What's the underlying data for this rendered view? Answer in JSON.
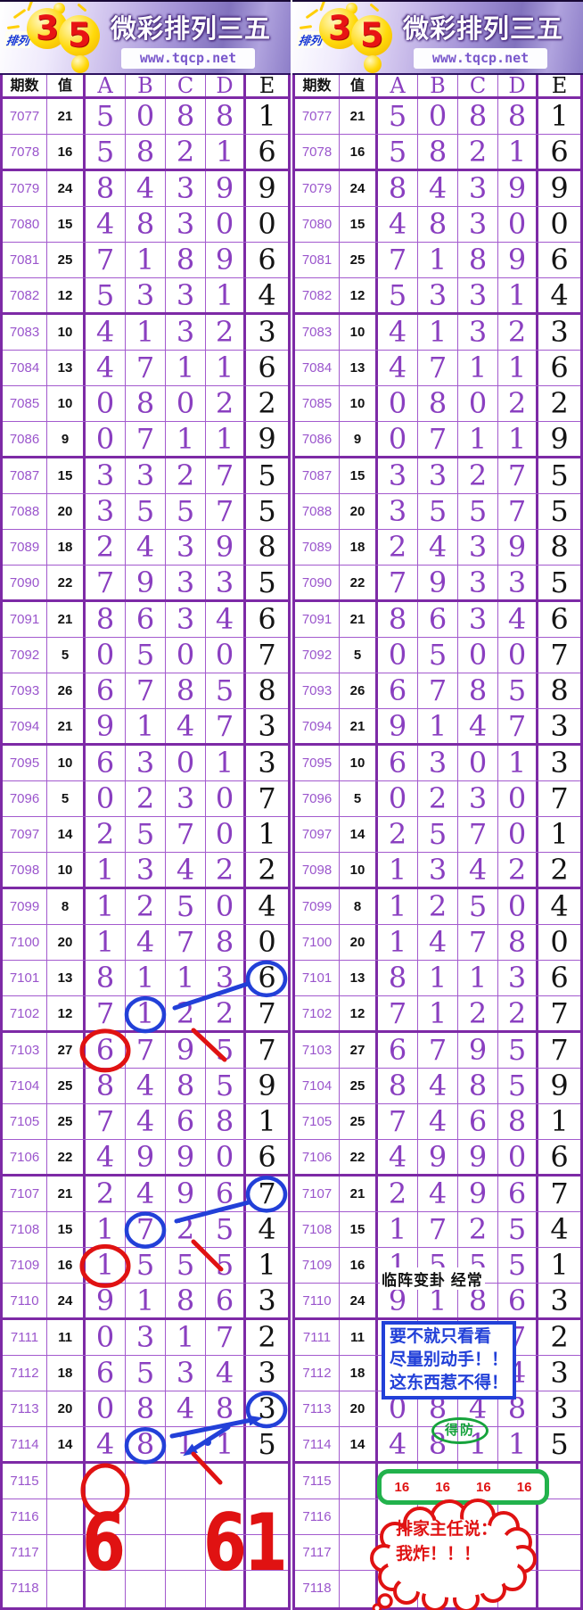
{
  "banner": {
    "logo_label": "排列",
    "digit1": "3",
    "digit2": "5",
    "title": "微彩排列三五",
    "url": "www.tqcp.net"
  },
  "chart_data": {
    "type": "table",
    "title": "微彩排列三五",
    "columns": [
      "期数",
      "值",
      "A",
      "B",
      "C",
      "D",
      "E"
    ],
    "rows": [
      [
        "7077",
        "21",
        "5",
        "0",
        "8",
        "8",
        "1"
      ],
      [
        "7078",
        "16",
        "5",
        "8",
        "2",
        "1",
        "6"
      ],
      [
        "7079",
        "24",
        "8",
        "4",
        "3",
        "9",
        "9"
      ],
      [
        "7080",
        "15",
        "4",
        "8",
        "3",
        "0",
        "0"
      ],
      [
        "7081",
        "25",
        "7",
        "1",
        "8",
        "9",
        "6"
      ],
      [
        "7082",
        "12",
        "5",
        "3",
        "3",
        "1",
        "4"
      ],
      [
        "7083",
        "10",
        "4",
        "1",
        "3",
        "2",
        "3"
      ],
      [
        "7084",
        "13",
        "4",
        "7",
        "1",
        "1",
        "6"
      ],
      [
        "7085",
        "10",
        "0",
        "8",
        "0",
        "2",
        "2"
      ],
      [
        "7086",
        "9",
        "0",
        "7",
        "1",
        "1",
        "9"
      ],
      [
        "7087",
        "15",
        "3",
        "3",
        "2",
        "7",
        "5"
      ],
      [
        "7088",
        "20",
        "3",
        "5",
        "5",
        "7",
        "5"
      ],
      [
        "7089",
        "18",
        "2",
        "4",
        "3",
        "9",
        "8"
      ],
      [
        "7090",
        "22",
        "7",
        "9",
        "3",
        "3",
        "5"
      ],
      [
        "7091",
        "21",
        "8",
        "6",
        "3",
        "4",
        "6"
      ],
      [
        "7092",
        "5",
        "0",
        "5",
        "0",
        "0",
        "7"
      ],
      [
        "7093",
        "26",
        "6",
        "7",
        "8",
        "5",
        "8"
      ],
      [
        "7094",
        "21",
        "9",
        "1",
        "4",
        "7",
        "3"
      ],
      [
        "7095",
        "10",
        "6",
        "3",
        "0",
        "1",
        "3"
      ],
      [
        "7096",
        "5",
        "0",
        "2",
        "3",
        "0",
        "7"
      ],
      [
        "7097",
        "14",
        "2",
        "5",
        "7",
        "0",
        "1"
      ],
      [
        "7098",
        "10",
        "1",
        "3",
        "4",
        "2",
        "2"
      ],
      [
        "7099",
        "8",
        "1",
        "2",
        "5",
        "0",
        "4"
      ],
      [
        "7100",
        "20",
        "1",
        "4",
        "7",
        "8",
        "0"
      ],
      [
        "7101",
        "13",
        "8",
        "1",
        "1",
        "3",
        "6"
      ],
      [
        "7102",
        "12",
        "7",
        "1",
        "2",
        "2",
        "7"
      ],
      [
        "7103",
        "27",
        "6",
        "7",
        "9",
        "5",
        "7"
      ],
      [
        "7104",
        "25",
        "8",
        "4",
        "8",
        "5",
        "9"
      ],
      [
        "7105",
        "25",
        "7",
        "4",
        "6",
        "8",
        "1"
      ],
      [
        "7106",
        "22",
        "4",
        "9",
        "9",
        "0",
        "6"
      ],
      [
        "7107",
        "21",
        "2",
        "4",
        "9",
        "6",
        "7"
      ],
      [
        "7108",
        "15",
        "1",
        "7",
        "2",
        "5",
        "4"
      ],
      [
        "7109",
        "16",
        "1",
        "5",
        "5",
        "5",
        "1"
      ],
      [
        "7110",
        "24",
        "9",
        "1",
        "8",
        "6",
        "3"
      ],
      [
        "7111",
        "11",
        "0",
        "3",
        "1",
        "7",
        "2"
      ],
      [
        "7112",
        "18",
        "6",
        "5",
        "3",
        "4",
        "3"
      ],
      [
        "7113",
        "20",
        "0",
        "8",
        "4",
        "8",
        "3"
      ],
      [
        "7114",
        "14",
        "4",
        "8",
        "1",
        "1",
        "5"
      ],
      [
        "7115",
        "",
        "",
        "",
        "",
        "",
        ""
      ],
      [
        "7116",
        "",
        "",
        "",
        "",
        "",
        ""
      ],
      [
        "7117",
        "",
        "",
        "",
        "",
        "",
        ""
      ],
      [
        "7118",
        "",
        "",
        "",
        "",
        "",
        ""
      ]
    ]
  },
  "annotations": {
    "colors": {
      "red": "#e01212",
      "blue": "#2240d8",
      "green": "#16a33c",
      "black": "#111111"
    },
    "left_panel": {
      "circled_cells": [
        {
          "period": "7101",
          "col": "E",
          "color": "blue"
        },
        {
          "period": "7102",
          "col": "B",
          "color": "blue"
        },
        {
          "period": "7103",
          "col": "A",
          "color": "red"
        },
        {
          "period": "7107",
          "col": "E",
          "color": "blue"
        },
        {
          "period": "7108",
          "col": "B",
          "color": "blue"
        },
        {
          "period": "7109",
          "col": "A",
          "color": "red"
        },
        {
          "period": "7113",
          "col": "E",
          "color": "blue"
        },
        {
          "period": "7114",
          "col": "B",
          "color": "blue"
        },
        {
          "period": "7115",
          "col": "A",
          "color": "red"
        }
      ],
      "big_red_numbers": [
        "6",
        "61"
      ]
    },
    "right_panel": {
      "note_top": "临阵变卦  经常",
      "warning_box": [
        "要不就只看看",
        "尽量别动手！！",
        "这东西惹不得！"
      ],
      "green_oval": "得防",
      "prediction_values": [
        "16",
        "16",
        "16",
        "16"
      ],
      "speech_bubble": [
        "排家主任说：",
        "我炸！！！"
      ]
    }
  }
}
